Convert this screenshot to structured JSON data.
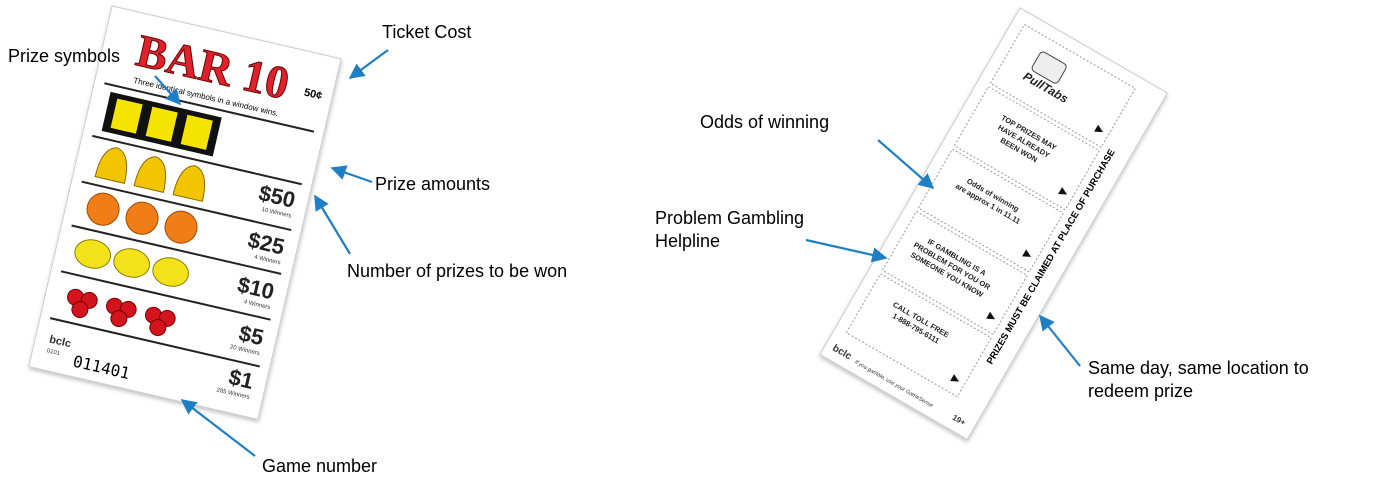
{
  "annotations": {
    "ticket_cost": "Ticket Cost",
    "prize_symbols": "Prize symbols",
    "prize_amounts": "Prize amounts",
    "number_of_prizes": "Number of prizes to be won",
    "game_number": "Game number",
    "odds_of_winning": "Odds of winning",
    "problem_gambling": [
      "Problem Gambling",
      "Helpline"
    ],
    "same_day": [
      "Same day, same location to",
      "redeem prize"
    ]
  },
  "front_ticket": {
    "title": "BAR 10",
    "cost": "50¢",
    "instructions": "Three identical symbols in a window wins.",
    "prizes": [
      {
        "amount": "$50",
        "winners": "10 Winners"
      },
      {
        "amount": "$25",
        "winners": "4 Winners"
      },
      {
        "amount": "$10",
        "winners": "4 Winners"
      },
      {
        "amount": "$5",
        "winners": "20 Winners"
      },
      {
        "amount": "$1",
        "winners": "285 Winners"
      }
    ],
    "brand": "bclc",
    "code": "0101",
    "game_number": "011401"
  },
  "back_ticket": {
    "logo": "PullTabs",
    "tabs": [
      [
        "TOP PRIZES MAY",
        "HAVE ALREADY",
        "BEEN WON"
      ],
      [
        "Odds of winning",
        "are approx 1 in 11.11"
      ],
      [
        "IF GAMBLING IS A",
        "PROBLEM FOR YOU OR",
        "SOMEONE YOU KNOW"
      ],
      [
        "CALL TOLL FREE",
        "1-888-795-6111"
      ]
    ],
    "side_text": "PRIZES MUST BE CLAIMED AT PLACE OF PURCHASE",
    "brand": "bclc",
    "footer": "If you gamble, use your GameSense",
    "age": "19+"
  }
}
